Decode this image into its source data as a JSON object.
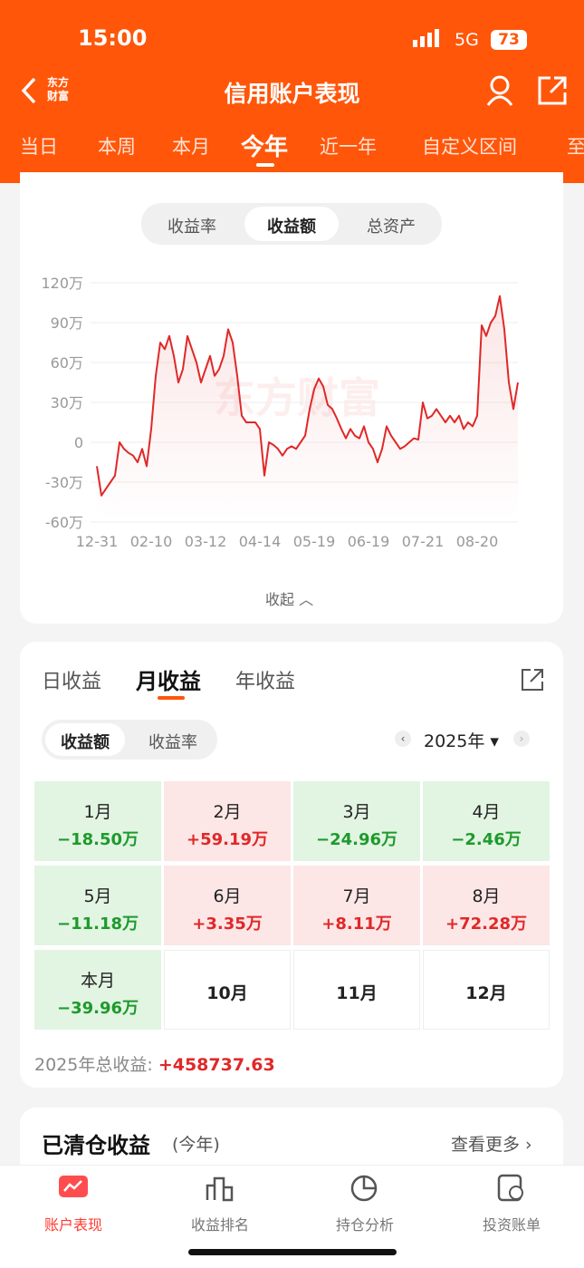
{
  "status_bar": {
    "time": "15:00",
    "network": "5G",
    "battery": "73"
  },
  "nav": {
    "title": "信用账户表现",
    "logo": [
      "东方",
      "财富"
    ]
  },
  "period_tabs": [
    "当日",
    "本周",
    "本月",
    "今年",
    "近一年",
    "自定义区间",
    "至"
  ],
  "chart_toggle": [
    "收益率",
    "收益额",
    "总资产"
  ],
  "chart_data": {
    "type": "line",
    "watermark": "东方财富",
    "color": "#e02828",
    "categories": [
      "12-31",
      null,
      null,
      null,
      null,
      null,
      null,
      null,
      null,
      null,
      null,
      null,
      "02-10",
      null,
      null,
      null,
      null,
      null,
      null,
      null,
      null,
      null,
      null,
      null,
      "03-12",
      null,
      null,
      null,
      null,
      null,
      null,
      null,
      null,
      null,
      null,
      null,
      "04-14",
      null,
      null,
      null,
      null,
      null,
      null,
      null,
      null,
      null,
      null,
      null,
      "05-19",
      null,
      null,
      null,
      null,
      null,
      null,
      null,
      null,
      null,
      null,
      null,
      "06-19",
      null,
      null,
      null,
      null,
      null,
      null,
      null,
      null,
      null,
      null,
      null,
      "07-21",
      null,
      null,
      null,
      null,
      null,
      null,
      null,
      null,
      null,
      null,
      null,
      "08-20",
      null,
      null,
      null,
      null,
      null,
      null,
      null,
      null,
      null
    ],
    "values": [
      -18,
      -40,
      -35,
      -30,
      -25,
      0,
      -5,
      -8,
      -10,
      -15,
      -5,
      -18,
      10,
      50,
      75,
      70,
      80,
      65,
      45,
      55,
      80,
      70,
      60,
      45,
      55,
      65,
      50,
      55,
      65,
      85,
      75,
      50,
      20,
      15,
      15,
      15,
      10,
      -25,
      0,
      -2,
      -5,
      -10,
      -5,
      -3,
      -5,
      0,
      5,
      25,
      40,
      48,
      42,
      28,
      25,
      18,
      10,
      3,
      10,
      5,
      3,
      12,
      0,
      -5,
      -15,
      -5,
      12,
      5,
      0,
      -5,
      -3,
      0,
      3,
      2,
      30,
      18,
      20,
      25,
      20,
      15,
      20,
      15,
      20,
      10,
      15,
      12,
      20,
      88,
      80,
      90,
      95,
      110,
      85,
      45,
      25,
      45
    ],
    "ylim": [
      -60,
      120
    ],
    "yticks": [
      {
        "value": -60,
        "label": "-60万"
      },
      {
        "value": -30,
        "label": "-30万"
      },
      0,
      {
        "value": 30,
        "label": "30万"
      },
      {
        "value": 60,
        "label": "60万"
      },
      {
        "value": 90,
        "label": "90万"
      },
      {
        "value": 120,
        "label": "120万"
      }
    ],
    "grid": true
  },
  "collapse": "收起",
  "returns": {
    "tabs": [
      "日收益",
      "月收益",
      "年收益"
    ],
    "toggle": [
      "收益额",
      "收益率"
    ],
    "year": "2025年",
    "months": [
      {
        "label": "1月",
        "value": "−18.50万"
      },
      {
        "label": "2月",
        "value": "+59.19万"
      },
      {
        "label": "3月",
        "value": "−24.96万"
      },
      {
        "label": "4月",
        "value": "−2.46万"
      },
      {
        "label": "5月",
        "value": "−11.18万"
      },
      {
        "label": "6月",
        "value": "+3.35万"
      },
      {
        "label": "7月",
        "value": "+8.11万"
      },
      {
        "label": "8月",
        "value": "+72.28万"
      },
      {
        "label": "本月",
        "value": "−39.96万"
      },
      {
        "label": "10月"
      },
      {
        "label": "11月"
      },
      {
        "label": "12月"
      }
    ],
    "total_label": "2025年总收益:",
    "total": "+458737.63"
  },
  "cleared": {
    "title": "已清仓收益",
    "subtitle": "(今年)",
    "more": "查看更多"
  },
  "bottom_nav": [
    "账户表现",
    "收益排名",
    "持仓分析",
    "投资账单"
  ]
}
